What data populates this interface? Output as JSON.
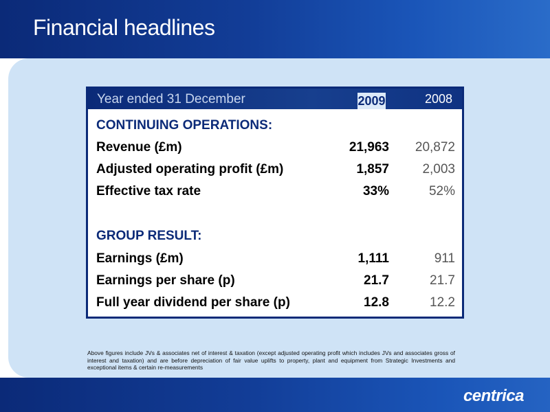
{
  "slide": {
    "title": "Financial headlines",
    "logo_text": "centrica"
  },
  "table": {
    "header": {
      "label": "Year ended 31 December",
      "col_2009": "2009",
      "col_2008": "2008"
    },
    "continuing_title": "CONTINUING OPERATIONS:",
    "continuing_rows": [
      {
        "label": "Revenue (£m)",
        "v2009": "21,963",
        "v2008": "20,872"
      },
      {
        "label": "Adjusted operating profit (£m)",
        "v2009": "1,857",
        "v2008": "2,003"
      },
      {
        "label": "Effective tax rate",
        "v2009": "33%",
        "v2008": "52%"
      }
    ],
    "group_title": "GROUP RESULT:",
    "group_rows": [
      {
        "label": "Earnings (£m)",
        "v2009": "1,111",
        "v2008": "911"
      },
      {
        "label": "Earnings per share (p)",
        "v2009": "21.7",
        "v2008": "21.7"
      },
      {
        "label": "Full year dividend per share (p)",
        "v2009": "12.8",
        "v2008": "12.2"
      }
    ]
  },
  "note": "Above figures include JVs & associates net of interest & taxation (except adjusted operating profit which includes JVs and associates gross of interest and taxation) and are before depreciation of fair value uplifts to property, plant and equipment from Strategic Investments and exceptional items & certain re-measurements",
  "colors": {
    "navy": "#0b2a78",
    "panel": "#cfe3f6",
    "white": "#ffffff"
  }
}
